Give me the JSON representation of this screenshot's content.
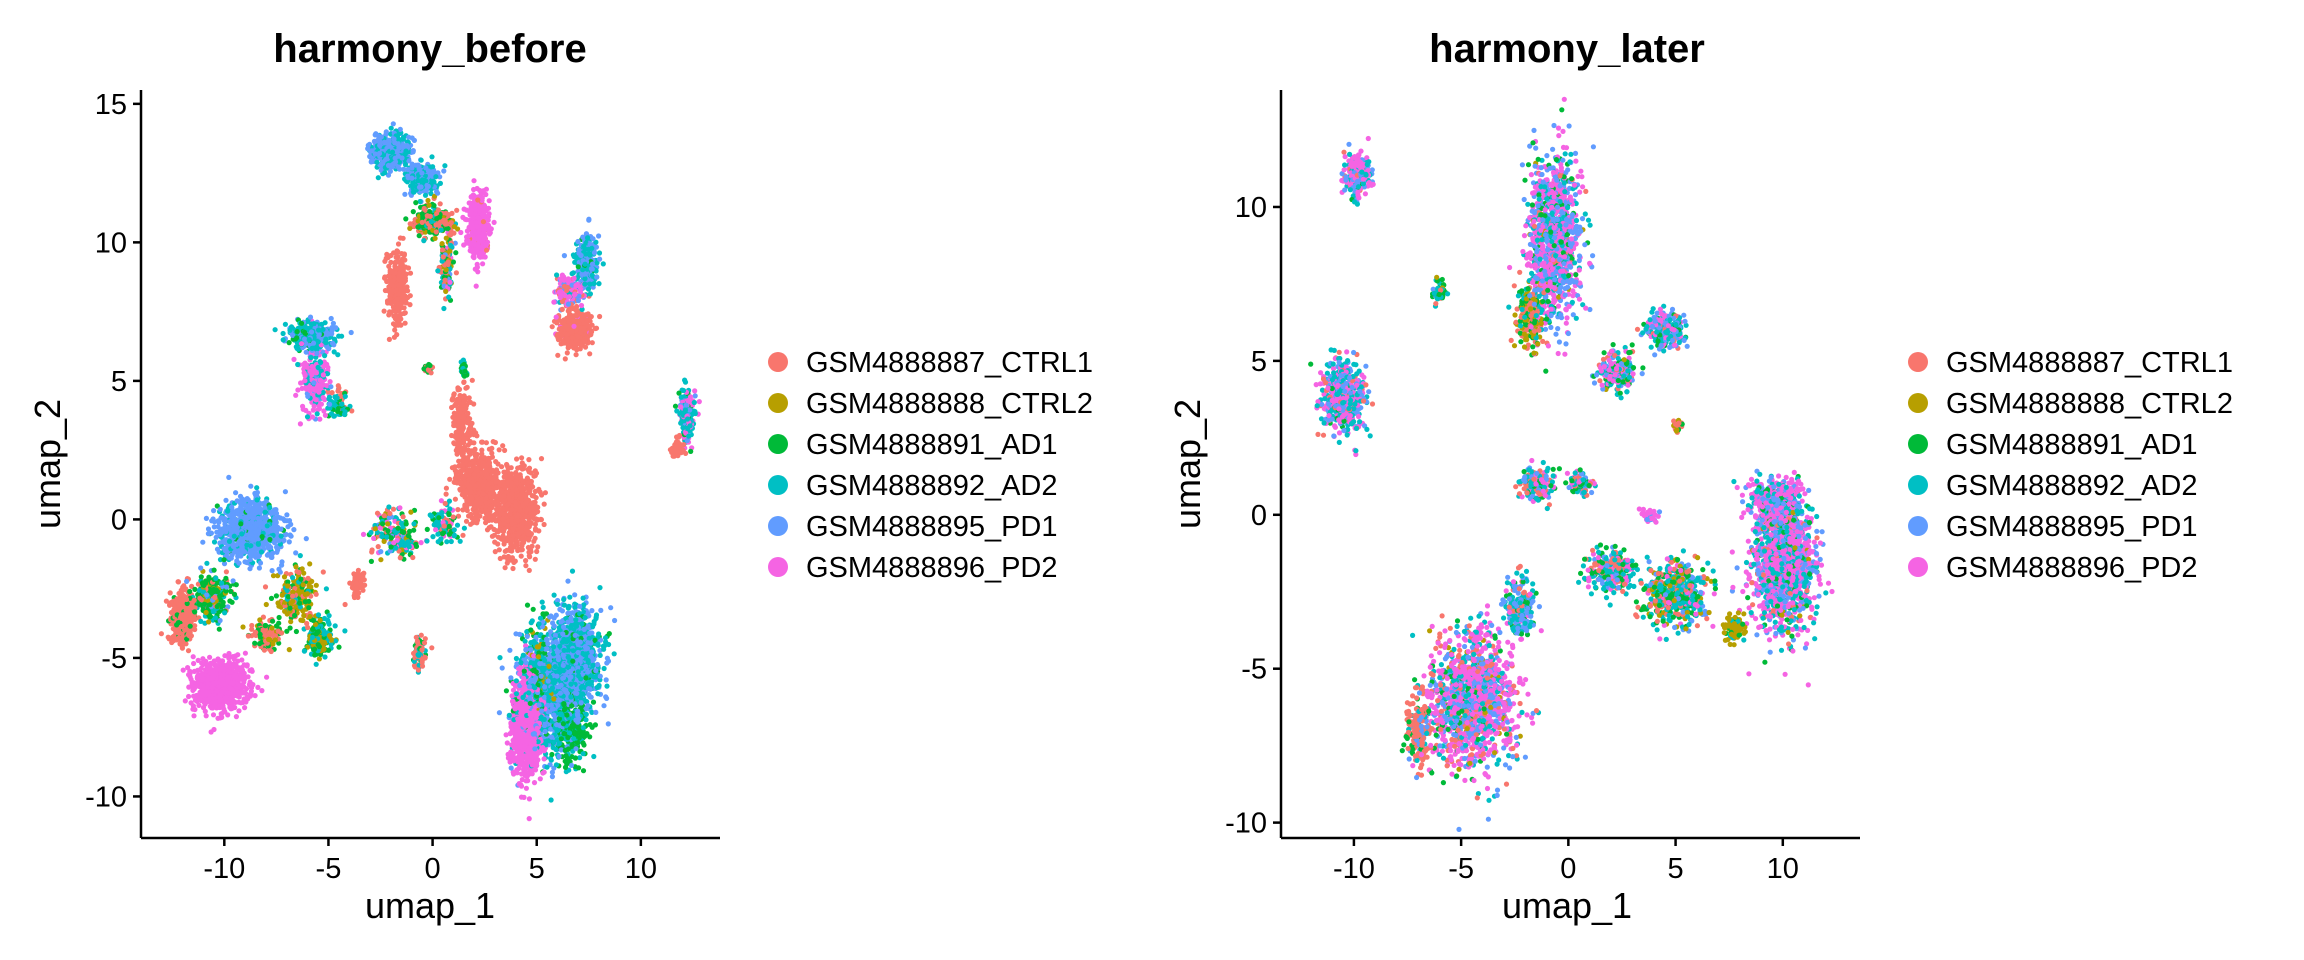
{
  "chart_data": [
    {
      "type": "scatter",
      "title": "harmony_before",
      "xlabel": "umap_1",
      "ylabel": "umap_2",
      "xlim": [
        -14,
        13.8
      ],
      "ylim": [
        -11.5,
        15.5
      ],
      "xticks": [
        -10,
        -5,
        0,
        5,
        10
      ],
      "yticks": [
        -10,
        -5,
        0,
        5,
        10,
        15
      ],
      "xtick_labels": [
        "-10",
        "-5",
        "0",
        "5",
        "10"
      ],
      "ytick_labels": [
        "-10",
        "-5",
        "0",
        "5",
        "10",
        "15"
      ],
      "grid": false,
      "legend": "right",
      "series": [
        {
          "name": "GSM4888887_CTRL1"
        },
        {
          "name": "GSM4888888_CTRL2"
        },
        {
          "name": "GSM4888891_AD1"
        },
        {
          "name": "GSM4888892_AD2"
        },
        {
          "name": "GSM4888895_PD1"
        },
        {
          "name": "GSM4888896_PD2"
        }
      ],
      "clusters": [
        {
          "x": 5.5,
          "y": -6.5,
          "sx": 1.2,
          "sy": 1.8,
          "n": 900,
          "mix": [
            0,
            0,
            0.05,
            0.5,
            0.45,
            0
          ]
        },
        {
          "x": 6.9,
          "y": -5.0,
          "sx": 1.0,
          "sy": 1.6,
          "n": 900,
          "mix": [
            0,
            0,
            0.05,
            0.45,
            0.5,
            0
          ]
        },
        {
          "x": 6.6,
          "y": -7.5,
          "sx": 0.7,
          "sy": 1.0,
          "n": 250,
          "mix": [
            0,
            0,
            0.7,
            0.3,
            0,
            0
          ]
        },
        {
          "x": 4.5,
          "y": -7.5,
          "sx": 0.55,
          "sy": 1.6,
          "n": 900,
          "mix": [
            0,
            0,
            0,
            0,
            0,
            1
          ]
        },
        {
          "x": 5.1,
          "y": -5.5,
          "sx": 0.6,
          "sy": 1.5,
          "n": 250,
          "mix": [
            0,
            0.2,
            0.3,
            0.3,
            0.2,
            0
          ]
        },
        {
          "x": 4.0,
          "y": 0.3,
          "sx": 0.9,
          "sy": 1.3,
          "n": 700,
          "mix": [
            1,
            0,
            0,
            0,
            0,
            0
          ]
        },
        {
          "x": 2.2,
          "y": 1.3,
          "sx": 0.9,
          "sy": 1.0,
          "n": 500,
          "mix": [
            1,
            0,
            0,
            0,
            0,
            0
          ]
        },
        {
          "x": 1.4,
          "y": 3.5,
          "sx": 0.4,
          "sy": 1.2,
          "n": 180,
          "mix": [
            1,
            0,
            0,
            0,
            0,
            0
          ]
        },
        {
          "x": -10.2,
          "y": -6.0,
          "sx": 1.1,
          "sy": 0.75,
          "n": 800,
          "mix": [
            0,
            0,
            0,
            0,
            0,
            1
          ]
        },
        {
          "x": -12.0,
          "y": -3.5,
          "sx": 0.5,
          "sy": 0.8,
          "n": 350,
          "mix": [
            0.9,
            0,
            0.1,
            0,
            0,
            0
          ]
        },
        {
          "x": -10.6,
          "y": -2.8,
          "sx": 0.7,
          "sy": 0.7,
          "n": 300,
          "mix": [
            0.1,
            0.1,
            0.5,
            0.2,
            0.1,
            0
          ]
        },
        {
          "x": -8.8,
          "y": -0.4,
          "sx": 1.4,
          "sy": 0.9,
          "n": 800,
          "mix": [
            0,
            0,
            0.03,
            0.12,
            0.85,
            0
          ]
        },
        {
          "x": -6.5,
          "y": -2.8,
          "sx": 0.8,
          "sy": 0.8,
          "n": 220,
          "mix": [
            0.2,
            0.5,
            0.2,
            0.1,
            0,
            0
          ]
        },
        {
          "x": -5.4,
          "y": -4.3,
          "sx": 0.55,
          "sy": 0.6,
          "n": 200,
          "mix": [
            0,
            0.3,
            0.4,
            0.3,
            0,
            0
          ]
        },
        {
          "x": -8.0,
          "y": -4.2,
          "sx": 0.7,
          "sy": 0.5,
          "n": 120,
          "mix": [
            0.5,
            0.2,
            0.3,
            0,
            0,
            0
          ]
        },
        {
          "x": -3.6,
          "y": -2.3,
          "sx": 0.3,
          "sy": 0.4,
          "n": 60,
          "mix": [
            1,
            0,
            0,
            0,
            0,
            0
          ]
        },
        {
          "x": -1.8,
          "y": -0.5,
          "sx": 0.9,
          "sy": 0.7,
          "n": 180,
          "mix": [
            0.2,
            0.1,
            0.2,
            0.3,
            0.1,
            0.1
          ]
        },
        {
          "x": 0.6,
          "y": -0.2,
          "sx": 0.6,
          "sy": 0.5,
          "n": 100,
          "mix": [
            0.2,
            0,
            0.2,
            0.5,
            0,
            0.1
          ]
        },
        {
          "x": -0.6,
          "y": -4.8,
          "sx": 0.25,
          "sy": 0.45,
          "n": 80,
          "mix": [
            0.6,
            0,
            0.2,
            0.2,
            0,
            0
          ]
        },
        {
          "x": -5.8,
          "y": 6.6,
          "sx": 0.9,
          "sy": 0.45,
          "n": 300,
          "mix": [
            0,
            0,
            0.1,
            0.45,
            0.45,
            0
          ]
        },
        {
          "x": -5.6,
          "y": 5.0,
          "sx": 0.55,
          "sy": 0.9,
          "n": 250,
          "mix": [
            0,
            0,
            0,
            0.2,
            0.1,
            0.7
          ]
        },
        {
          "x": -4.5,
          "y": 4.2,
          "sx": 0.5,
          "sy": 0.4,
          "n": 70,
          "mix": [
            0.3,
            0,
            0.3,
            0.4,
            0,
            0
          ]
        },
        {
          "x": -2.0,
          "y": 13.3,
          "sx": 0.75,
          "sy": 0.5,
          "n": 550,
          "mix": [
            0,
            0,
            0,
            0.35,
            0.65,
            0
          ]
        },
        {
          "x": -0.5,
          "y": 12.3,
          "sx": 0.6,
          "sy": 0.5,
          "n": 200,
          "mix": [
            0,
            0,
            0,
            0.5,
            0.5,
            0
          ]
        },
        {
          "x": 0.0,
          "y": 10.8,
          "sx": 0.8,
          "sy": 0.45,
          "n": 300,
          "mix": [
            0.3,
            0.15,
            0.45,
            0.1,
            0,
            0
          ]
        },
        {
          "x": 2.2,
          "y": 10.6,
          "sx": 0.45,
          "sy": 1.0,
          "n": 350,
          "mix": [
            0.05,
            0,
            0,
            0,
            0,
            0.95
          ]
        },
        {
          "x": -1.7,
          "y": 8.3,
          "sx": 0.4,
          "sy": 1.1,
          "n": 300,
          "mix": [
            1,
            0,
            0,
            0,
            0,
            0
          ]
        },
        {
          "x": 0.7,
          "y": 9.2,
          "sx": 0.25,
          "sy": 0.9,
          "n": 120,
          "mix": [
            0.2,
            0.2,
            0.2,
            0.2,
            0.1,
            0.1
          ]
        },
        {
          "x": 6.8,
          "y": 6.9,
          "sx": 0.7,
          "sy": 0.6,
          "n": 300,
          "mix": [
            0.95,
            0,
            0,
            0,
            0,
            0.05
          ]
        },
        {
          "x": 7.4,
          "y": 9.3,
          "sx": 0.4,
          "sy": 0.8,
          "n": 300,
          "mix": [
            0,
            0,
            0.05,
            0.5,
            0.45,
            0
          ]
        },
        {
          "x": 6.6,
          "y": 8.2,
          "sx": 0.6,
          "sy": 0.5,
          "n": 140,
          "mix": [
            0.1,
            0,
            0,
            0.1,
            0.2,
            0.6
          ]
        },
        {
          "x": 12.2,
          "y": 3.8,
          "sx": 0.3,
          "sy": 0.8,
          "n": 200,
          "mix": [
            0,
            0,
            0.1,
            0.5,
            0.1,
            0.3
          ]
        },
        {
          "x": 11.8,
          "y": 2.6,
          "sx": 0.25,
          "sy": 0.3,
          "n": 50,
          "mix": [
            1,
            0,
            0,
            0,
            0,
            0
          ]
        },
        {
          "x": -0.2,
          "y": 5.4,
          "sx": 0.15,
          "sy": 0.15,
          "n": 25,
          "mix": [
            0.5,
            0,
            0.5,
            0,
            0,
            0
          ]
        },
        {
          "x": 1.5,
          "y": 5.4,
          "sx": 0.12,
          "sy": 0.3,
          "n": 25,
          "mix": [
            0,
            0,
            0.5,
            0.5,
            0,
            0
          ]
        }
      ]
    },
    {
      "type": "scatter",
      "title": "harmony_later",
      "xlabel": "umap_1",
      "ylabel": "umap_2",
      "xlim": [
        -13.4,
        13.6
      ],
      "ylim": [
        -10.5,
        13.8
      ],
      "xticks": [
        -10,
        -5,
        0,
        5,
        10
      ],
      "yticks": [
        -10,
        -5,
        0,
        5,
        10
      ],
      "xtick_labels": [
        "-10",
        "-5",
        "0",
        "5",
        "10"
      ],
      "ytick_labels": [
        "-10",
        "-5",
        "0",
        "5",
        "10"
      ],
      "grid": false,
      "legend": "right",
      "series": [
        {
          "name": "GSM4888887_CTRL1"
        },
        {
          "name": "GSM4888888_CTRL2"
        },
        {
          "name": "GSM4888891_AD1"
        },
        {
          "name": "GSM4888892_AD2"
        },
        {
          "name": "GSM4888895_PD1"
        },
        {
          "name": "GSM4888896_PD2"
        }
      ],
      "clusters": [
        {
          "x": -4.5,
          "y": -6.0,
          "sx": 1.6,
          "sy": 1.8,
          "n": 1400,
          "mix": [
            0.12,
            0.03,
            0.05,
            0.15,
            0.2,
            0.45
          ]
        },
        {
          "x": -7.0,
          "y": -7.0,
          "sx": 0.5,
          "sy": 0.9,
          "n": 200,
          "mix": [
            0.7,
            0,
            0.1,
            0.1,
            0.1,
            0
          ]
        },
        {
          "x": -2.3,
          "y": -3.0,
          "sx": 0.6,
          "sy": 0.9,
          "n": 200,
          "mix": [
            0.1,
            0,
            0.1,
            0.3,
            0.4,
            0.1
          ]
        },
        {
          "x": 10.0,
          "y": -1.5,
          "sx": 1.2,
          "sy": 1.8,
          "n": 1500,
          "mix": [
            0.03,
            0.02,
            0.05,
            0.2,
            0.2,
            0.5
          ]
        },
        {
          "x": 7.8,
          "y": -3.7,
          "sx": 0.4,
          "sy": 0.4,
          "n": 90,
          "mix": [
            0,
            0.8,
            0.1,
            0.1,
            0,
            0
          ]
        },
        {
          "x": 5.0,
          "y": -2.5,
          "sx": 1.2,
          "sy": 0.8,
          "n": 500,
          "mix": [
            0.2,
            0.1,
            0.2,
            0.3,
            0.1,
            0.1
          ]
        },
        {
          "x": 2.0,
          "y": -1.8,
          "sx": 0.9,
          "sy": 0.5,
          "n": 250,
          "mix": [
            0.1,
            0,
            0.2,
            0.4,
            0.1,
            0.2
          ]
        },
        {
          "x": 3.8,
          "y": 0.0,
          "sx": 0.3,
          "sy": 0.2,
          "n": 40,
          "mix": [
            0,
            0,
            0,
            0,
            0.2,
            0.8
          ]
        },
        {
          "x": -0.7,
          "y": 9.0,
          "sx": 1.0,
          "sy": 2.2,
          "n": 1100,
          "mix": [
            0.05,
            0.02,
            0.08,
            0.15,
            0.3,
            0.4
          ]
        },
        {
          "x": -1.8,
          "y": 6.5,
          "sx": 0.5,
          "sy": 0.9,
          "n": 200,
          "mix": [
            0.3,
            0.3,
            0.3,
            0.1,
            0,
            0
          ]
        },
        {
          "x": -10.5,
          "y": 3.8,
          "sx": 0.8,
          "sy": 0.9,
          "n": 500,
          "mix": [
            0.1,
            0,
            0.05,
            0.3,
            0.25,
            0.3
          ]
        },
        {
          "x": -9.8,
          "y": 11.0,
          "sx": 0.5,
          "sy": 0.6,
          "n": 250,
          "mix": [
            0.05,
            0,
            0.05,
            0.2,
            0.2,
            0.5
          ]
        },
        {
          "x": 4.5,
          "y": 6.0,
          "sx": 0.7,
          "sy": 0.5,
          "n": 250,
          "mix": [
            0.05,
            0,
            0.1,
            0.35,
            0.3,
            0.2
          ]
        },
        {
          "x": 2.3,
          "y": 4.7,
          "sx": 0.7,
          "sy": 0.5,
          "n": 200,
          "mix": [
            0.1,
            0.05,
            0.2,
            0.25,
            0.2,
            0.2
          ]
        },
        {
          "x": -1.5,
          "y": 1.0,
          "sx": 0.6,
          "sy": 0.5,
          "n": 150,
          "mix": [
            0.2,
            0,
            0.1,
            0.3,
            0.2,
            0.2
          ]
        },
        {
          "x": 0.5,
          "y": 1.0,
          "sx": 0.5,
          "sy": 0.3,
          "n": 100,
          "mix": [
            0.1,
            0,
            0.2,
            0.3,
            0.2,
            0.2
          ]
        },
        {
          "x": -6.0,
          "y": 7.3,
          "sx": 0.2,
          "sy": 0.3,
          "n": 50,
          "mix": [
            0.1,
            0.1,
            0.3,
            0.4,
            0.1,
            0
          ]
        },
        {
          "x": 5.1,
          "y": 2.9,
          "sx": 0.2,
          "sy": 0.2,
          "n": 30,
          "mix": [
            0.5,
            0.3,
            0.2,
            0,
            0,
            0
          ]
        },
        {
          "x": 9.6,
          "y": 0.5,
          "sx": 1.0,
          "sy": 0.5,
          "n": 250,
          "mix": [
            0,
            0,
            0.05,
            0.2,
            0.25,
            0.5
          ]
        }
      ]
    }
  ],
  "colors": [
    "#F8766D",
    "#B79F00",
    "#00BA38",
    "#00BFC4",
    "#619CFF",
    "#F564E3"
  ]
}
